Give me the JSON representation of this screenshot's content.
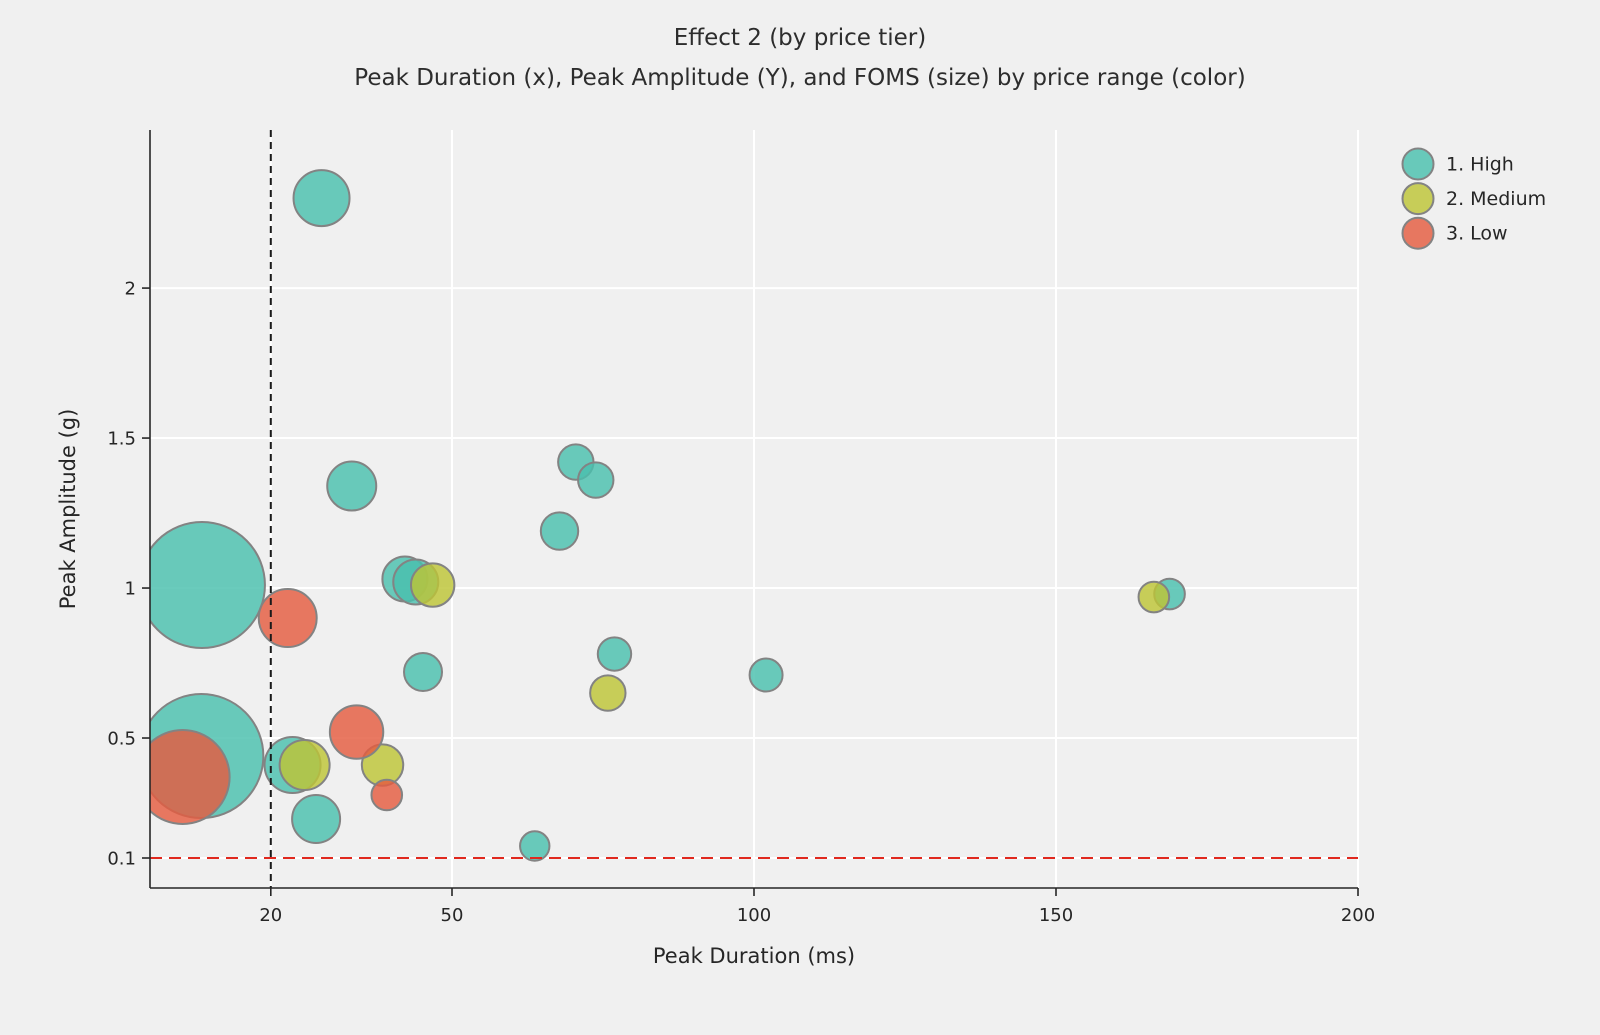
{
  "figure": {
    "background_color": "#f0f0f0",
    "title": "Effect 2 (by price tier)",
    "subtitle": "Peak Duration (x), Peak Amplitude (Y), and FOMS (size) by price range (color)"
  },
  "chart_data": {
    "type": "scatter",
    "title": "Effect 2 (by price tier)",
    "subtitle": "Peak Duration (x), Peak Amplitude (Y), and FOMS (size) by price range (color)",
    "xlabel": "Peak Duration (ms)",
    "ylabel": "Peak Amplitude (g)",
    "xlim": [
      0,
      200
    ],
    "ylim": [
      0,
      2.527
    ],
    "grid": true,
    "grid_color": "#ffffff",
    "xticks": {
      "values": [
        20,
        50,
        100,
        150,
        200
      ],
      "labels": [
        "20",
        "50",
        "100",
        "150",
        "200"
      ]
    },
    "yticks": {
      "values": [
        0.1,
        0.5,
        1,
        1.5,
        2
      ],
      "labels": [
        "0.1",
        "0.5",
        "1",
        "1.5",
        "2"
      ]
    },
    "reference_lines": {
      "vline": {
        "x": 20,
        "color": "#1a1a1a",
        "style": "dashed"
      },
      "hline": {
        "y": 0.1,
        "color": "#e0281e",
        "style": "dashed"
      }
    },
    "size_encoding": "FOMS (size)",
    "marker_opacity": 0.82,
    "marker_edge_color": "#838383",
    "legend": {
      "position": "upper-right",
      "entries": [
        {
          "label": "1. High",
          "color": "#49BFAD"
        },
        {
          "label": "2. Medium",
          "color": "#BDC536"
        },
        {
          "label": "3. Low",
          "color": "#E45C3F"
        }
      ]
    },
    "series": [
      {
        "name": "1. High",
        "color": "#49BFAD",
        "points": [
          {
            "x": 8.6,
            "y": 1.01,
            "r": 63
          },
          {
            "x": 8.5,
            "y": 0.44,
            "r": 62
          },
          {
            "x": 28.4,
            "y": 2.3,
            "r": 28
          },
          {
            "x": 33.4,
            "y": 1.34,
            "r": 24.5
          },
          {
            "x": 23.6,
            "y": 0.41,
            "r": 28
          },
          {
            "x": 27.5,
            "y": 0.23,
            "r": 24
          },
          {
            "x": 42.2,
            "y": 1.03,
            "r": 22.5
          },
          {
            "x": 44.0,
            "y": 1.02,
            "r": 22.5
          },
          {
            "x": 45.2,
            "y": 0.72,
            "r": 19
          },
          {
            "x": 67.8,
            "y": 1.19,
            "r": 18.7
          },
          {
            "x": 70.5,
            "y": 1.42,
            "r": 17.7
          },
          {
            "x": 73.8,
            "y": 1.36,
            "r": 17.7
          },
          {
            "x": 76.9,
            "y": 0.78,
            "r": 16.7
          },
          {
            "x": 102.0,
            "y": 0.71,
            "r": 16.5
          },
          {
            "x": 63.7,
            "y": 0.14,
            "r": 14.7
          },
          {
            "x": 168.8,
            "y": 0.98,
            "r": 15.3
          }
        ]
      },
      {
        "name": "2. Medium",
        "color": "#BDC536",
        "points": [
          {
            "x": 46.8,
            "y": 1.01,
            "r": 21.7
          },
          {
            "x": 25.6,
            "y": 0.41,
            "r": 25
          },
          {
            "x": 38.5,
            "y": 0.41,
            "r": 20.7
          },
          {
            "x": 75.8,
            "y": 0.65,
            "r": 17.7
          },
          {
            "x": 166.2,
            "y": 0.97,
            "r": 15.3
          }
        ]
      },
      {
        "name": "3. Low",
        "color": "#E45C3F",
        "points": [
          {
            "x": 5.4,
            "y": 0.37,
            "r": 47
          },
          {
            "x": 22.8,
            "y": 0.9,
            "r": 29
          },
          {
            "x": 34.2,
            "y": 0.52,
            "r": 26.7
          },
          {
            "x": 39.2,
            "y": 0.31,
            "r": 15.3
          }
        ]
      }
    ]
  }
}
